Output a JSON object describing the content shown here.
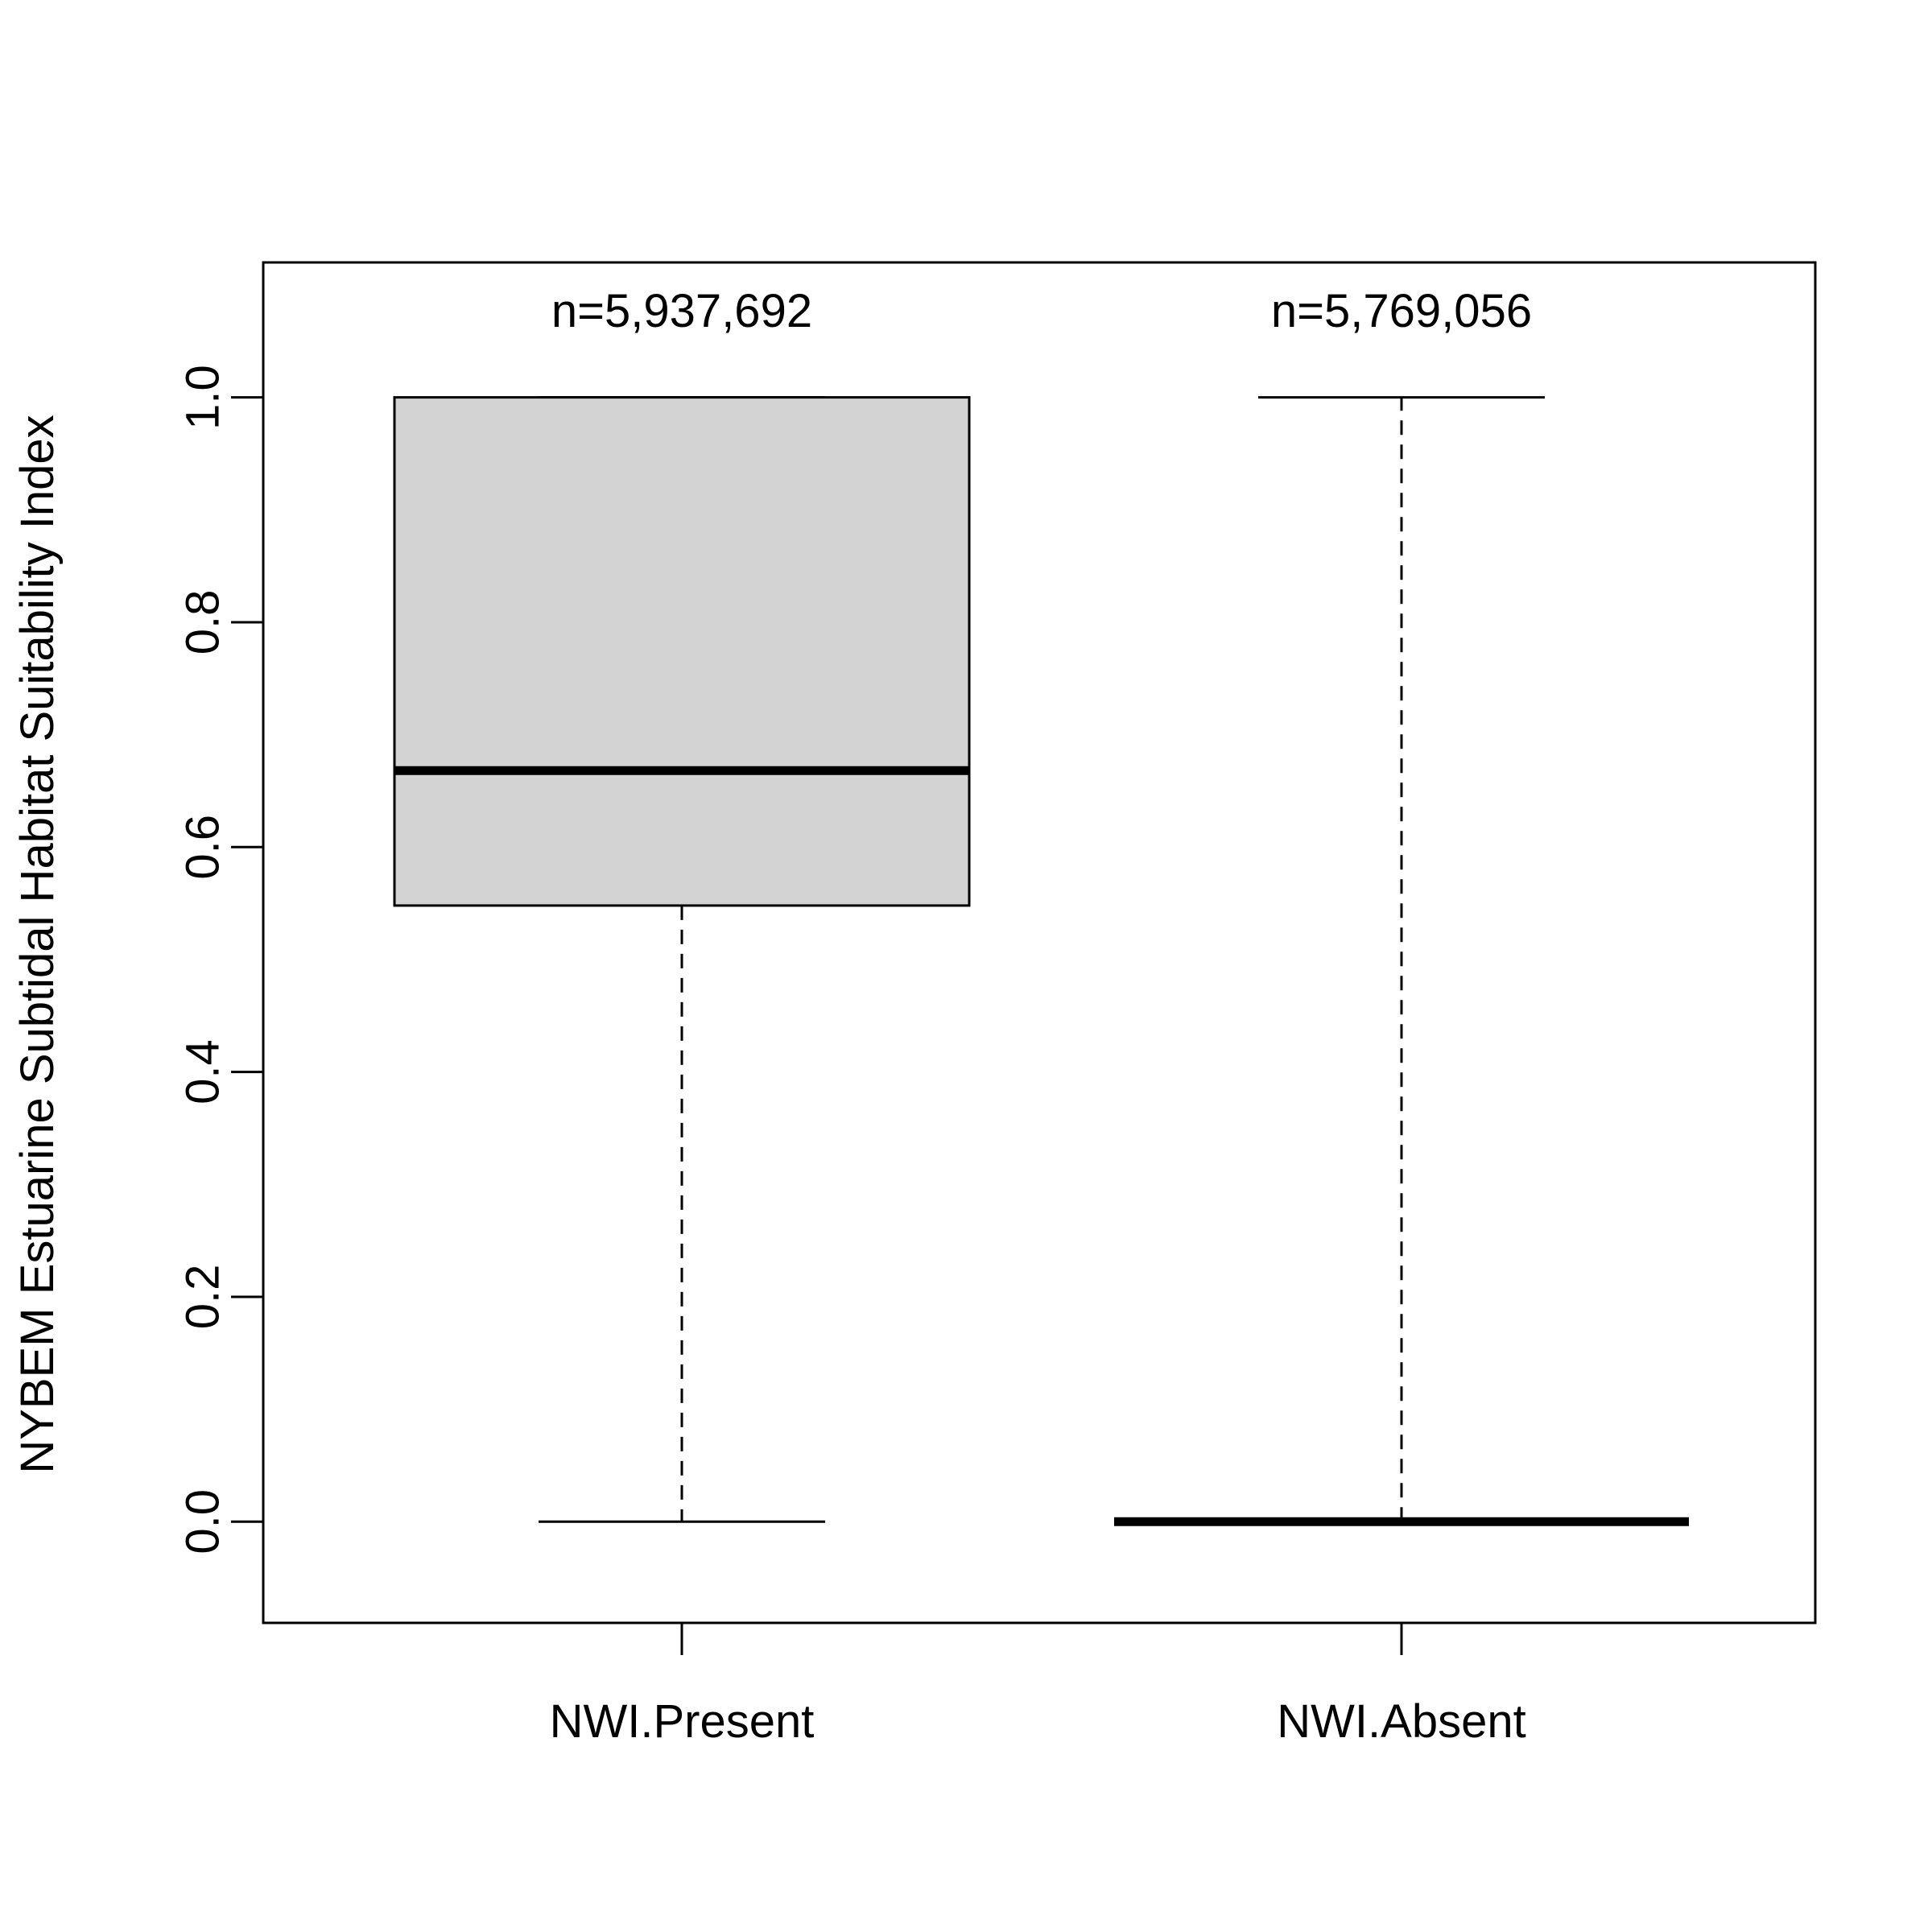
{
  "chart_data": {
    "type": "box",
    "ylabel": "NYBEM Estuarine Subtidal Habitat Suitability Index",
    "xlabel": "",
    "title": "",
    "ylim": [
      -0.09,
      1.12
    ],
    "yticks": [
      0.0,
      0.2,
      0.4,
      0.6,
      0.8,
      1.0
    ],
    "ytick_labels": [
      "0.0",
      "0.2",
      "0.4",
      "0.6",
      "0.8",
      "1.0"
    ],
    "categories": [
      "NWI.Present",
      "NWI.Absent"
    ],
    "annotations": [
      "n=5,937,692",
      "n=5,769,056"
    ],
    "boxes": [
      {
        "category": "NWI.Present",
        "whisker_low": 0.0,
        "q1": 0.548,
        "median": 0.668,
        "q3": 1.0,
        "whisker_high": 1.0
      },
      {
        "category": "NWI.Absent",
        "whisker_low": 0.0,
        "q1": 0.0,
        "median": 0.0,
        "q3": 0.0,
        "whisker_high": 1.0
      }
    ],
    "grid": false,
    "legend": "none",
    "colors": {
      "box_fill": "#d3d3d3",
      "stroke": "#000000"
    }
  }
}
